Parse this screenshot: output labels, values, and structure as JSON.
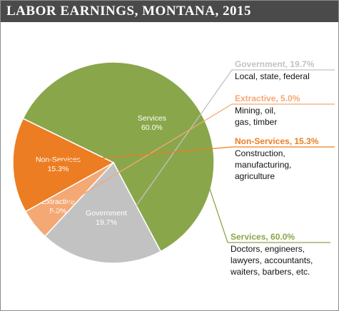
{
  "title": "LABOR EARNINGS, MONTANA, 2015",
  "chart_data": {
    "type": "pie",
    "title": "LABOR EARNINGS, MONTANA, 2015",
    "slices": [
      {
        "name": "Services",
        "value": 60.0,
        "pct_label": "60.0%",
        "color": "#8aa64b",
        "legend_title": "Services, 60.0%",
        "desc": [
          "Doctors, engineers,",
          "lawyers, accountants,",
          "waiters, barbers, etc."
        ]
      },
      {
        "name": "Government",
        "value": 19.7,
        "pct_label": "19.7%",
        "color": "#c2c2c2",
        "legend_title": "Government, 19.7%",
        "desc": [
          "Local, state, federal"
        ]
      },
      {
        "name": "Extractive",
        "value": 5.0,
        "pct_label": "5.0%",
        "color": "#f4a874",
        "legend_title": "Extractive, 5.0%",
        "desc": [
          "Mining, oil,",
          "gas, timber"
        ]
      },
      {
        "name": "Non-Services",
        "value": 15.3,
        "pct_label": "15.3%",
        "color": "#ec7d22",
        "legend_title": "Non-Services, 15.3%",
        "desc": [
          "Construction,",
          "manufacturing,",
          "agriculture"
        ]
      }
    ],
    "legend_placement": "right"
  }
}
